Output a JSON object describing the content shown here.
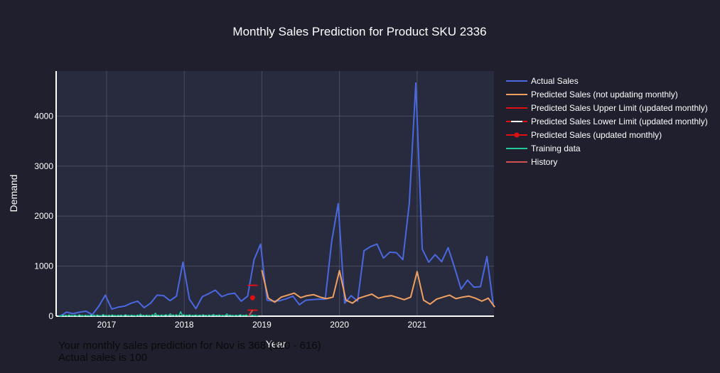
{
  "chart_data": {
    "type": "line",
    "title": "Monthly Sales Prediction for Product SKU 2336",
    "xlabel": "Year",
    "ylabel": "Demand",
    "x_ticks": [
      "2017",
      "2018",
      "2019",
      "2020",
      "2021"
    ],
    "y_ticks": [
      "0",
      "1000",
      "2000",
      "3000",
      "4000"
    ],
    "xlim": [
      2016.35,
      2021.99
    ],
    "ylim": [
      0,
      4900
    ],
    "grid": true,
    "legend_position": "right",
    "colors": {
      "background": "#1f1f2e",
      "plot_bg": "#282a3e",
      "grid": "#4a4d63",
      "axis": "#ffffff"
    },
    "series": [
      {
        "name": "Actual Sales",
        "color": "#4a68e0",
        "x_start": 2016.4,
        "x_step": 0.08333,
        "values": [
          0,
          80,
          50,
          80,
          100,
          30,
          200,
          420,
          140,
          180,
          200,
          260,
          300,
          170,
          260,
          420,
          410,
          310,
          400,
          1080,
          340,
          150,
          390,
          450,
          520,
          390,
          440,
          460,
          300,
          400,
          1130,
          1440,
          320,
          300,
          310,
          350,
          400,
          230,
          320,
          330,
          340,
          340,
          1500,
          2250,
          260,
          410,
          300,
          1310,
          1390,
          1440,
          1160,
          1280,
          1270,
          1130,
          2260,
          4660,
          1340,
          1080,
          1230,
          1090,
          1370,
          970,
          540,
          720,
          580,
          590,
          1190,
          200
        ]
      },
      {
        "name": "Predicted Sales (not updating monthly)",
        "color": "#f0a060",
        "x_start": 2019.0,
        "x_step": 0.08333,
        "values": [
          920,
          360,
          280,
          380,
          420,
          460,
          370,
          410,
          430,
          380,
          350,
          380,
          910,
          320,
          260,
          360,
          400,
          440,
          360,
          390,
          410,
          370,
          330,
          380,
          890,
          320,
          240,
          340,
          380,
          420,
          350,
          380,
          400,
          360,
          300,
          360,
          180
        ]
      },
      {
        "name": "Predicted Sales Upper Limit (updated monthly)",
        "color": "#e01010",
        "points": [
          [
            2018.88,
            616
          ]
        ]
      },
      {
        "name": "Predicted Sales Lower Limit (updated monthly)",
        "color": "#e01010",
        "points": [
          [
            2018.88,
            120
          ]
        ]
      },
      {
        "name": "Predicted Sales (updated monthly)",
        "color": "#e01010",
        "points": [
          [
            2018.88,
            368
          ]
        ]
      },
      {
        "name": "Training data",
        "color": "#20c997",
        "x_start": 2016.38,
        "x_step": 0.0192,
        "values": [
          0,
          12,
          4,
          20,
          6,
          18,
          3,
          25,
          8,
          15,
          5,
          22,
          10,
          4,
          28,
          7,
          16,
          3,
          20,
          9,
          14,
          5,
          30,
          6,
          18,
          2,
          24,
          10,
          12,
          4,
          35,
          8,
          15,
          6,
          20,
          3,
          26,
          9,
          14,
          5,
          18,
          7,
          22,
          4,
          12,
          30,
          8,
          16,
          5,
          20,
          10,
          14,
          3,
          24,
          6,
          40,
          8,
          18,
          5,
          22,
          9,
          15,
          4,
          28,
          7,
          60,
          12,
          20,
          6,
          25,
          10,
          15,
          30,
          8,
          18,
          45,
          12,
          25,
          6,
          30,
          10,
          20,
          90,
          15,
          30,
          8,
          22,
          12,
          28,
          5,
          18,
          10,
          25,
          8,
          14,
          20,
          6,
          30,
          12,
          18,
          5,
          24,
          10,
          16,
          35,
          8,
          20,
          12,
          26,
          6,
          18,
          10,
          15,
          45,
          8,
          22,
          12,
          16,
          6,
          20,
          10,
          14,
          30,
          8,
          18,
          12,
          24,
          6,
          16,
          10,
          20,
          8,
          14,
          5,
          12
        ]
      },
      {
        "name": "History",
        "color": "#d05050",
        "points": [
          [
            2018.83,
            0
          ],
          [
            2018.88,
            120
          ]
        ]
      }
    ]
  },
  "notes": {
    "line1": "Your monthly sales prediction for Nov is 368 (120 - 616)",
    "line2": "Actual sales is 100"
  }
}
